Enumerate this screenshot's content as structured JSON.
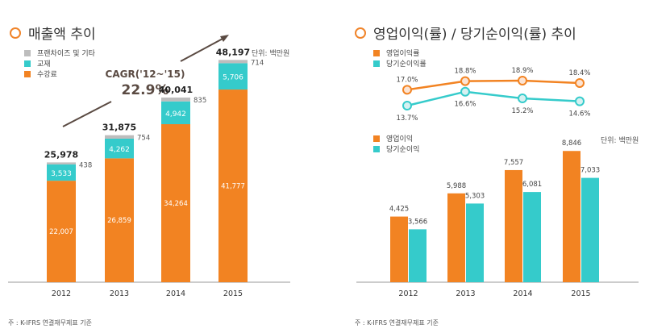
{
  "colors": {
    "orange": "#f28322",
    "teal": "#35cbcb",
    "gray": "#bdbdbd",
    "axis": "#999999",
    "arrow": "#5a4a42",
    "text": "#333333"
  },
  "left": {
    "title": "매출액 추이",
    "unit": "단위: 백만원",
    "note": "주 : K-IFRS 연결재무제표 기준",
    "legend": [
      "프랜차이즈 및 기타",
      "교재",
      "수강료"
    ],
    "cagr_label": "CAGR('12~'15)",
    "cagr_value": "22.9%"
  },
  "right": {
    "title": "영업이익(률) / 당기순이익(률) 추이",
    "unit": "단위: 백만원",
    "note": "주 : K-IFRS 연결재무제표 기준",
    "line_legend": [
      "영업이익률",
      "당기순이익률"
    ],
    "bar_legend": [
      "영업이익",
      "당기순이익"
    ]
  },
  "chart_data": [
    {
      "type": "bar",
      "stacked": true,
      "title": "매출액 추이",
      "categories": [
        "2012",
        "2013",
        "2014",
        "2015"
      ],
      "series": [
        {
          "name": "수강료",
          "values": [
            22007,
            26859,
            34264,
            41777
          ],
          "labels": [
            "22,007",
            "26,859",
            "34,264",
            "41,777"
          ]
        },
        {
          "name": "교재",
          "values": [
            3533,
            4262,
            4942,
            5706
          ],
          "labels": [
            "3,533",
            "4,262",
            "4,942",
            "5,706"
          ]
        },
        {
          "name": "프랜차이즈 및 기타",
          "values": [
            438,
            754,
            835,
            714
          ],
          "labels": [
            "438",
            "754",
            "835",
            "714"
          ]
        }
      ],
      "totals": [
        25978,
        31875,
        40041,
        48197
      ],
      "total_labels": [
        "25,978",
        "31,875",
        "40,041",
        "48,197"
      ],
      "annotation": "CAGR('12~'15) 22.9%",
      "ylim": [
        0,
        50000
      ]
    },
    {
      "type": "line",
      "title": "영업이익률 / 당기순이익률",
      "categories": [
        "2012",
        "2013",
        "2014",
        "2015"
      ],
      "series": [
        {
          "name": "영업이익률",
          "values": [
            17.0,
            18.8,
            18.9,
            18.4
          ],
          "labels": [
            "17.0%",
            "18.8%",
            "18.9%",
            "18.4%"
          ]
        },
        {
          "name": "당기순이익률",
          "values": [
            13.7,
            16.6,
            15.2,
            14.6
          ],
          "labels": [
            "13.7%",
            "16.6%",
            "15.2%",
            "14.6%"
          ]
        }
      ]
    },
    {
      "type": "bar",
      "title": "영업이익 / 당기순이익",
      "categories": [
        "2012",
        "2013",
        "2014",
        "2015"
      ],
      "series": [
        {
          "name": "영업이익",
          "values": [
            4425,
            5988,
            7557,
            8846
          ],
          "labels": [
            "4,425",
            "5,988",
            "7,557",
            "8,846"
          ]
        },
        {
          "name": "당기순이익",
          "values": [
            3566,
            5303,
            6081,
            7033
          ],
          "labels": [
            "3,566",
            "5,303",
            "6,081",
            "7,033"
          ]
        }
      ],
      "ylim": [
        0,
        10000
      ]
    }
  ]
}
